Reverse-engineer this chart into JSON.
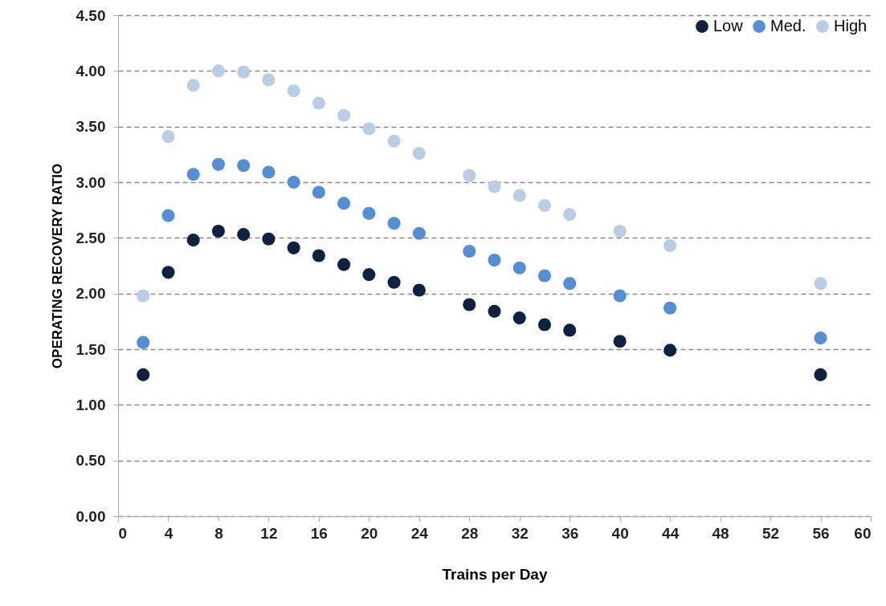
{
  "chart_data": {
    "type": "scatter",
    "xlabel": "Trains per Day",
    "ylabel": "OPERATING RECOVERY RATIO",
    "x": [
      2,
      4,
      6,
      8,
      10,
      12,
      14,
      16,
      18,
      20,
      22,
      24,
      28,
      30,
      32,
      34,
      36,
      40,
      44,
      56
    ],
    "series": [
      {
        "name": "Low",
        "color": "#0d2240",
        "values": [
          1.27,
          2.19,
          2.48,
          2.56,
          2.53,
          2.49,
          2.41,
          2.34,
          2.26,
          2.17,
          2.1,
          2.03,
          1.9,
          1.84,
          1.78,
          1.72,
          1.67,
          1.57,
          1.49,
          1.27
        ]
      },
      {
        "name": "Med.",
        "color": "#558ed5",
        "values": [
          1.56,
          2.7,
          3.07,
          3.16,
          3.15,
          3.09,
          3.0,
          2.91,
          2.81,
          2.72,
          2.63,
          2.54,
          2.38,
          2.3,
          2.23,
          2.16,
          2.09,
          1.98,
          1.87,
          1.6
        ]
      },
      {
        "name": "High",
        "color": "#b9cde5",
        "values": [
          1.98,
          3.41,
          3.87,
          4.0,
          3.99,
          3.92,
          3.82,
          3.71,
          3.6,
          3.48,
          3.37,
          3.26,
          3.06,
          2.96,
          2.88,
          2.79,
          2.71,
          2.56,
          2.43,
          2.09
        ]
      }
    ],
    "xlim": [
      0,
      60
    ],
    "xticks": [
      0,
      4,
      8,
      12,
      16,
      20,
      24,
      28,
      32,
      36,
      40,
      44,
      48,
      52,
      56,
      60
    ],
    "ylim": [
      0,
      4.5
    ],
    "yticks": [
      {
        "value": 0,
        "label": "0.00"
      },
      {
        "value": 0.5,
        "label": "0.50"
      },
      {
        "value": 1,
        "label": "1.00"
      },
      {
        "value": 1.5,
        "label": "1.50"
      },
      {
        "value": 2,
        "label": "2.00"
      },
      {
        "value": 2.5,
        "label": "2.50"
      },
      {
        "value": 3,
        "label": "3.00"
      },
      {
        "value": 3.5,
        "label": "3.50"
      },
      {
        "value": 4,
        "label": "4.00"
      },
      {
        "value": 4.5,
        "label": "4.50"
      }
    ],
    "grid": "y",
    "legend": "top right",
    "marker": "circle",
    "line_style": "dashed"
  }
}
